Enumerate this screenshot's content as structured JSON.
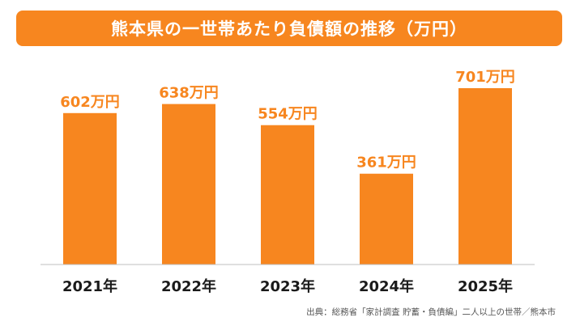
{
  "colors": {
    "accent": "#f7861f",
    "bar": "#f7861f",
    "value_label": "#f7861f",
    "axis_label": "#1a1a1a",
    "baseline": "#bfbfbf"
  },
  "source_note": "出典：総務省「家計調査 貯蓄・負債編」二人以上の世帯／熊本市",
  "chart_data": {
    "type": "bar",
    "title": "熊本県の一世帯あたり負債額の推移（万円）",
    "xlabel": "",
    "ylabel": "",
    "categories": [
      "2021年",
      "2022年",
      "2023年",
      "2024年",
      "2025年"
    ],
    "values": [
      602,
      638,
      554,
      361,
      701
    ],
    "value_labels": [
      "602万円",
      "638万円",
      "554万円",
      "361万円",
      "701万円"
    ],
    "ylim": [
      0,
      701
    ],
    "grid": false,
    "legend": "none"
  }
}
